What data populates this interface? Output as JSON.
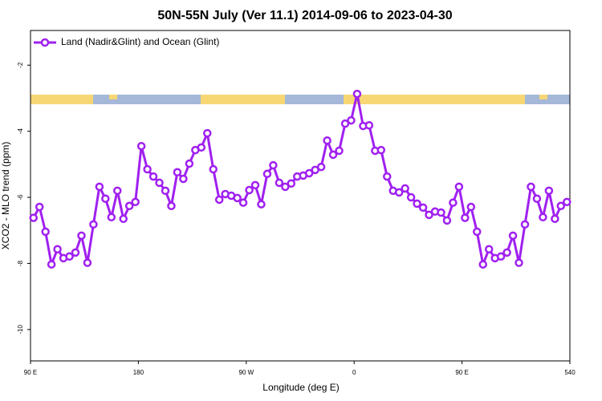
{
  "chart_data": {
    "type": "line",
    "title": "50N-55N July (Ver 11.1)   2014-09-06 to 2023-04-30",
    "x_label": "Longitude (deg E)",
    "y_label": "XCO2 - MLO trend (ppm)",
    "x": [
      92.5,
      97.5,
      102.5,
      107.5,
      112.5,
      117.5,
      122.5,
      127.5,
      132.5,
      137.5,
      142.5,
      147.5,
      152.5,
      157.5,
      162.5,
      167.5,
      172.5,
      177.5,
      182.5,
      187.5,
      192.5,
      197.5,
      202.5,
      207.5,
      212.5,
      217.5,
      222.5,
      227.5,
      232.5,
      237.5,
      242.5,
      247.5,
      252.5,
      257.5,
      262.5,
      267.5,
      272.5,
      277.5,
      282.5,
      287.5,
      292.5,
      297.5,
      302.5,
      307.5,
      312.5,
      317.5,
      322.5,
      327.5,
      332.5,
      337.5,
      342.5,
      347.5,
      352.5,
      357.5,
      362.5,
      367.5,
      372.5,
      377.5,
      382.5,
      387.5,
      392.5,
      397.5,
      402.5,
      407.5,
      412.5,
      417.5,
      422.5,
      427.5,
      432.5,
      437.5,
      442.5,
      447.5,
      452.5,
      457.5,
      462.5,
      467.5,
      472.5,
      477.5,
      482.5,
      487.5,
      492.5,
      497.5,
      502.5,
      507.5,
      512.5,
      517.5,
      522.5,
      527.5,
      532.5,
      537.5
    ],
    "series": [
      {
        "name": "Land (Nadir&Glint) and Ocean (Glint)",
        "color": "#a020f0",
        "values": [
          -6.62,
          -6.29,
          -7.04,
          -8.03,
          -7.57,
          -7.84,
          -7.79,
          -7.67,
          -7.16,
          -7.98,
          -6.82,
          -5.68,
          -6.04,
          -6.6,
          -5.8,
          -6.65,
          -6.26,
          -6.14,
          -4.45,
          -5.15,
          -5.37,
          -5.56,
          -5.8,
          -6.26,
          -5.24,
          -5.44,
          -4.98,
          -4.57,
          -4.49,
          -4.06,
          -5.15,
          -6.07,
          -5.9,
          -5.95,
          -6.02,
          -6.16,
          -5.78,
          -5.63,
          -6.21,
          -5.29,
          -5.03,
          -5.56,
          -5.68,
          -5.58,
          -5.37,
          -5.34,
          -5.27,
          -5.17,
          -5.08,
          -4.28,
          -4.71,
          -4.59,
          -3.77,
          -3.67,
          -2.87,
          -3.84,
          -3.82,
          -4.59,
          -4.57,
          -5.37,
          -5.8,
          -5.85,
          -5.73,
          -6.0,
          -6.19,
          -6.31,
          -6.53,
          -6.43,
          -6.46,
          -6.7,
          -6.16,
          -5.68,
          -6.62,
          -6.29,
          -7.04,
          -8.03,
          -7.57,
          -7.84,
          -7.79,
          -7.67,
          -7.16,
          -7.98,
          -6.82,
          -5.68,
          -6.04,
          -6.6,
          -5.8,
          -6.65,
          -6.26,
          -6.14
        ]
      }
    ],
    "xlim": [
      90,
      540
    ],
    "xticks": [
      {
        "value": 90,
        "label": "90 E"
      },
      180,
      {
        "value": 270,
        "label": "90 W"
      },
      {
        "value": 360,
        "label": "0"
      },
      {
        "value": 450,
        "label": "90 E"
      },
      540
    ],
    "ylim": [
      -10.95,
      -0.95
    ],
    "yticks": [
      -2,
      -4,
      -6,
      -8,
      -10
    ],
    "grid": false,
    "legend": "top-left"
  }
}
